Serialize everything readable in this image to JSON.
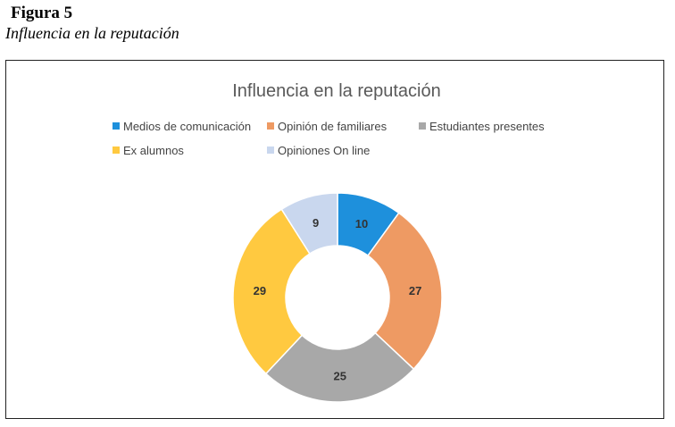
{
  "figure": {
    "label": "Figura 5",
    "caption": "Influencia en la reputación"
  },
  "chart_data": {
    "type": "pie",
    "donut": true,
    "title": "Influencia en la reputación",
    "legend_position": "top",
    "categories": [
      "Medios de comunicación",
      "Opinión de familiares",
      "Estudiantes presentes",
      "Ex alumnos",
      "Opiniones On line"
    ],
    "values": [
      10,
      27,
      25,
      29,
      9
    ],
    "colors": [
      "#1E90DC",
      "#EE9A63",
      "#A8A8A8",
      "#FFC940",
      "#C9D7EE"
    ],
    "data_labels": [
      "10",
      "27",
      "25",
      "29",
      "9"
    ]
  }
}
